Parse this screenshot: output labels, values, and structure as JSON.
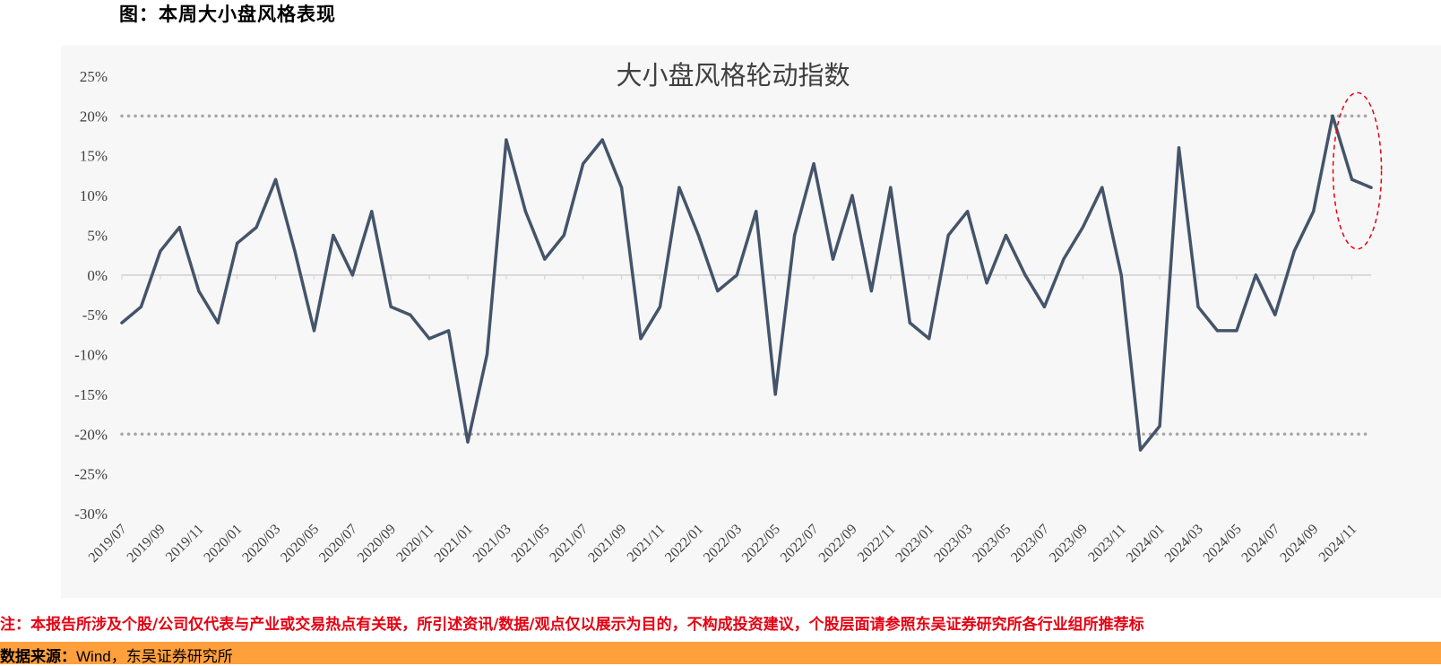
{
  "figure_title": "图：本周大小盘风格表现",
  "note": "注：本报告所涉及个股/公司仅代表与产业或交易热点有关联，所引述资讯/数据/观点仅以展示为目的，不构成投资建议，个股层面请参照东吴证券研究所各行业组所推荐标",
  "source": {
    "label": "数据来源：",
    "text": "Wind，东吴证券研究所"
  },
  "colors": {
    "line": "#44546a",
    "axis": "#d0d0d0",
    "guide": "#a6a6a6",
    "highlight": "#e60012",
    "background": "#f7f7f7",
    "source_bar": "#ffa03c",
    "note": "#e60012"
  },
  "chart_data": {
    "type": "line",
    "title": "大小盘风格轮动指数",
    "xlabel": "",
    "ylabel": "",
    "ylim": [
      -0.3,
      0.25
    ],
    "yticks": [
      0.25,
      0.2,
      0.15,
      0.1,
      0.05,
      0.0,
      -0.05,
      -0.1,
      -0.15,
      -0.2,
      -0.25,
      -0.3
    ],
    "ytick_labels": [
      "25%",
      "20%",
      "15%",
      "10%",
      "5%",
      "0%",
      "-5%",
      "-10%",
      "-15%",
      "-20%",
      "-25%",
      "-30%"
    ],
    "xtick_labels": [
      "2019/07",
      "2019/09",
      "2019/11",
      "2020/01",
      "2020/03",
      "2020/05",
      "2020/07",
      "2020/09",
      "2020/11",
      "2021/01",
      "2021/03",
      "2021/05",
      "2021/07",
      "2021/09",
      "2021/11",
      "2022/01",
      "2022/03",
      "2022/05",
      "2022/07",
      "2022/09",
      "2022/11",
      "2023/01",
      "2023/03",
      "2023/05",
      "2023/07",
      "2023/09",
      "2023/11",
      "2024/01",
      "2024/03",
      "2024/05",
      "2024/07",
      "2024/09",
      "2024/11"
    ],
    "reference_lines": [
      0.2,
      -0.2
    ],
    "highlight": "latest-period",
    "series": [
      {
        "x": [
          "2019/07",
          "2019/08",
          "2019/09",
          "2019/10",
          "2019/11",
          "2019/12",
          "2020/01",
          "2020/02",
          "2020/03",
          "2020/04",
          "2020/05",
          "2020/06",
          "2020/07",
          "2020/08",
          "2020/09",
          "2020/10",
          "2020/11",
          "2020/12",
          "2021/01",
          "2021/02",
          "2021/03",
          "2021/04",
          "2021/05",
          "2021/06",
          "2021/07",
          "2021/08",
          "2021/09",
          "2021/10",
          "2021/11",
          "2021/12",
          "2022/01",
          "2022/02",
          "2022/03",
          "2022/04",
          "2022/05",
          "2022/06",
          "2022/07",
          "2022/08",
          "2022/09",
          "2022/10",
          "2022/11",
          "2022/12",
          "2023/01",
          "2023/02",
          "2023/03",
          "2023/04",
          "2023/05",
          "2023/06",
          "2023/07",
          "2023/08",
          "2023/09",
          "2023/10",
          "2023/11",
          "2023/12",
          "2024/01",
          "2024/02",
          "2024/03",
          "2024/04",
          "2024/05",
          "2024/06",
          "2024/07",
          "2024/08",
          "2024/09",
          "2024/10",
          "2024/11",
          "2024/12"
        ],
        "values": [
          -0.06,
          -0.04,
          0.03,
          0.06,
          -0.02,
          -0.06,
          0.04,
          0.06,
          0.12,
          0.03,
          -0.07,
          0.05,
          0.0,
          0.08,
          -0.04,
          -0.05,
          -0.08,
          -0.07,
          -0.21,
          -0.1,
          0.17,
          0.08,
          0.02,
          0.05,
          0.14,
          0.17,
          0.11,
          -0.08,
          -0.04,
          0.11,
          0.05,
          -0.02,
          0.0,
          0.08,
          -0.15,
          0.05,
          0.14,
          0.02,
          0.1,
          -0.02,
          0.11,
          -0.06,
          -0.08,
          0.05,
          0.08,
          -0.01,
          0.05,
          0.0,
          -0.04,
          0.02,
          0.06,
          0.11,
          0.0,
          -0.22,
          -0.19,
          0.16,
          -0.04,
          -0.07,
          -0.07,
          0.0,
          -0.05,
          0.03,
          0.08,
          0.2,
          0.12,
          0.11
        ]
      }
    ]
  }
}
